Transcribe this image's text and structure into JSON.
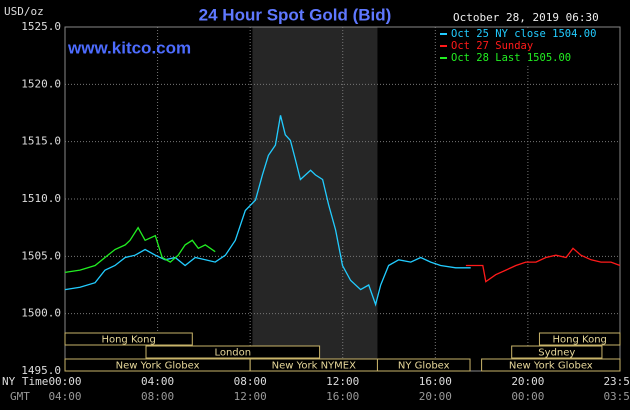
{
  "chart_data": {
    "type": "line",
    "title": "24 Hour Spot Gold (Bid)",
    "unit_label": "USD/oz",
    "timestamp": "October 28, 2019 06:30",
    "site": "www.kitco.com",
    "x_label": "NY Time",
    "x2_label": "GMT",
    "xlim": [
      0,
      23.98
    ],
    "xticks": [
      {
        "value": 0,
        "label": "00:00"
      },
      {
        "value": 4,
        "label": "04:00"
      },
      {
        "value": 8,
        "label": "08:00"
      },
      {
        "value": 12,
        "label": "12:00"
      },
      {
        "value": 16,
        "label": "16:00"
      },
      {
        "value": 20,
        "label": "20:00"
      },
      {
        "value": 23.98,
        "label": "23:59"
      }
    ],
    "x2ticks": [
      "04:00",
      "08:00",
      "12:00",
      "16:00",
      "20:00",
      "00:00",
      "03:59"
    ],
    "ylim": [
      1495,
      1525
    ],
    "yticks": [
      {
        "value": 1495,
        "label": "1495.0"
      },
      {
        "value": 1500,
        "label": "1500.0"
      },
      {
        "value": 1505,
        "label": "1505.0"
      },
      {
        "value": 1510,
        "label": "1510.0"
      },
      {
        "value": 1515,
        "label": "1515.0"
      },
      {
        "value": 1520,
        "label": "1520.0"
      },
      {
        "value": 1525,
        "label": "1525.0"
      }
    ],
    "grid": true,
    "shaded_span": [
      8.1,
      13.5
    ],
    "series": [
      {
        "name": "Oct 25 NY close 1504.00",
        "color": "#22ccff",
        "x": [
          0,
          0.65,
          1.3,
          1.73,
          2.16,
          2.6,
          3.03,
          3.46,
          3.9,
          4.33,
          4.76,
          5.19,
          5.63,
          6.06,
          6.49,
          6.93,
          7.36,
          7.79,
          8.23,
          8.53,
          8.79,
          9.09,
          9.31,
          9.52,
          9.74,
          9.96,
          10.17,
          10.39,
          10.61,
          10.82,
          11.13,
          11.39,
          11.69,
          11.99,
          12.34,
          12.77,
          13.12,
          13.42,
          13.64,
          13.98,
          14.42,
          14.94,
          15.37,
          15.8,
          16.23,
          16.88,
          17.53
        ],
        "values": [
          1502.1,
          1502.3,
          1502.7,
          1503.8,
          1504.2,
          1504.9,
          1505.1,
          1505.6,
          1505.1,
          1504.7,
          1504.9,
          1504.2,
          1504.9,
          1504.7,
          1504.5,
          1505.1,
          1506.4,
          1509.0,
          1509.9,
          1512.1,
          1513.8,
          1514.7,
          1517.3,
          1515.6,
          1515.1,
          1513.4,
          1511.7,
          1512.1,
          1512.5,
          1512.1,
          1511.7,
          1509.5,
          1507.3,
          1504.2,
          1502.9,
          1502.1,
          1502.5,
          1500.8,
          1502.5,
          1504.2,
          1504.7,
          1504.5,
          1504.9,
          1504.5,
          1504.2,
          1504.0,
          1504.0
        ]
      },
      {
        "name": "Oct 27 Sunday",
        "color": "#ff1a1a",
        "x": [
          17.32,
          18.05,
          18.18,
          18.61,
          19.05,
          19.48,
          19.91,
          20.35,
          20.78,
          21.21,
          21.65,
          21.95,
          22.29,
          22.73,
          23.16,
          23.59,
          23.98
        ],
        "values": [
          1504.2,
          1504.2,
          1502.8,
          1503.4,
          1503.8,
          1504.2,
          1504.5,
          1504.5,
          1504.9,
          1505.1,
          1504.9,
          1505.7,
          1505.1,
          1504.7,
          1504.5,
          1504.5,
          1504.2
        ]
      },
      {
        "name": "Oct 28 Last 1505.00",
        "color": "#22ee22",
        "x": [
          0,
          0.65,
          1.3,
          1.73,
          2.16,
          2.6,
          2.81,
          3.16,
          3.46,
          3.9,
          4.2,
          4.55,
          4.89,
          5.19,
          5.5,
          5.76,
          6.06,
          6.49
        ],
        "values": [
          1503.6,
          1503.8,
          1504.2,
          1504.9,
          1505.6,
          1506.0,
          1506.4,
          1507.5,
          1506.4,
          1506.8,
          1504.9,
          1504.5,
          1505.1,
          1506.0,
          1506.4,
          1505.7,
          1506.0,
          1505.4
        ]
      }
    ],
    "sessions": [
      [
        {
          "label": "Hong Kong",
          "start": 0,
          "end": 5.5
        },
        {
          "label": "Hong Kong",
          "start": 20.5,
          "end": 23.98
        }
      ],
      [
        {
          "label": "London",
          "start": 3.5,
          "end": 11
        },
        {
          "label": "Sydney",
          "start": 19.3,
          "end": 23.2
        }
      ],
      [
        {
          "label": "New York Globex",
          "start": 0,
          "end": 8
        },
        {
          "label": "New York NYMEX",
          "start": 8,
          "end": 13.5
        },
        {
          "label": "NY Globex",
          "start": 13.5,
          "end": 17.5
        },
        {
          "label": "New York Globex",
          "start": 18,
          "end": 23.98
        }
      ]
    ]
  }
}
